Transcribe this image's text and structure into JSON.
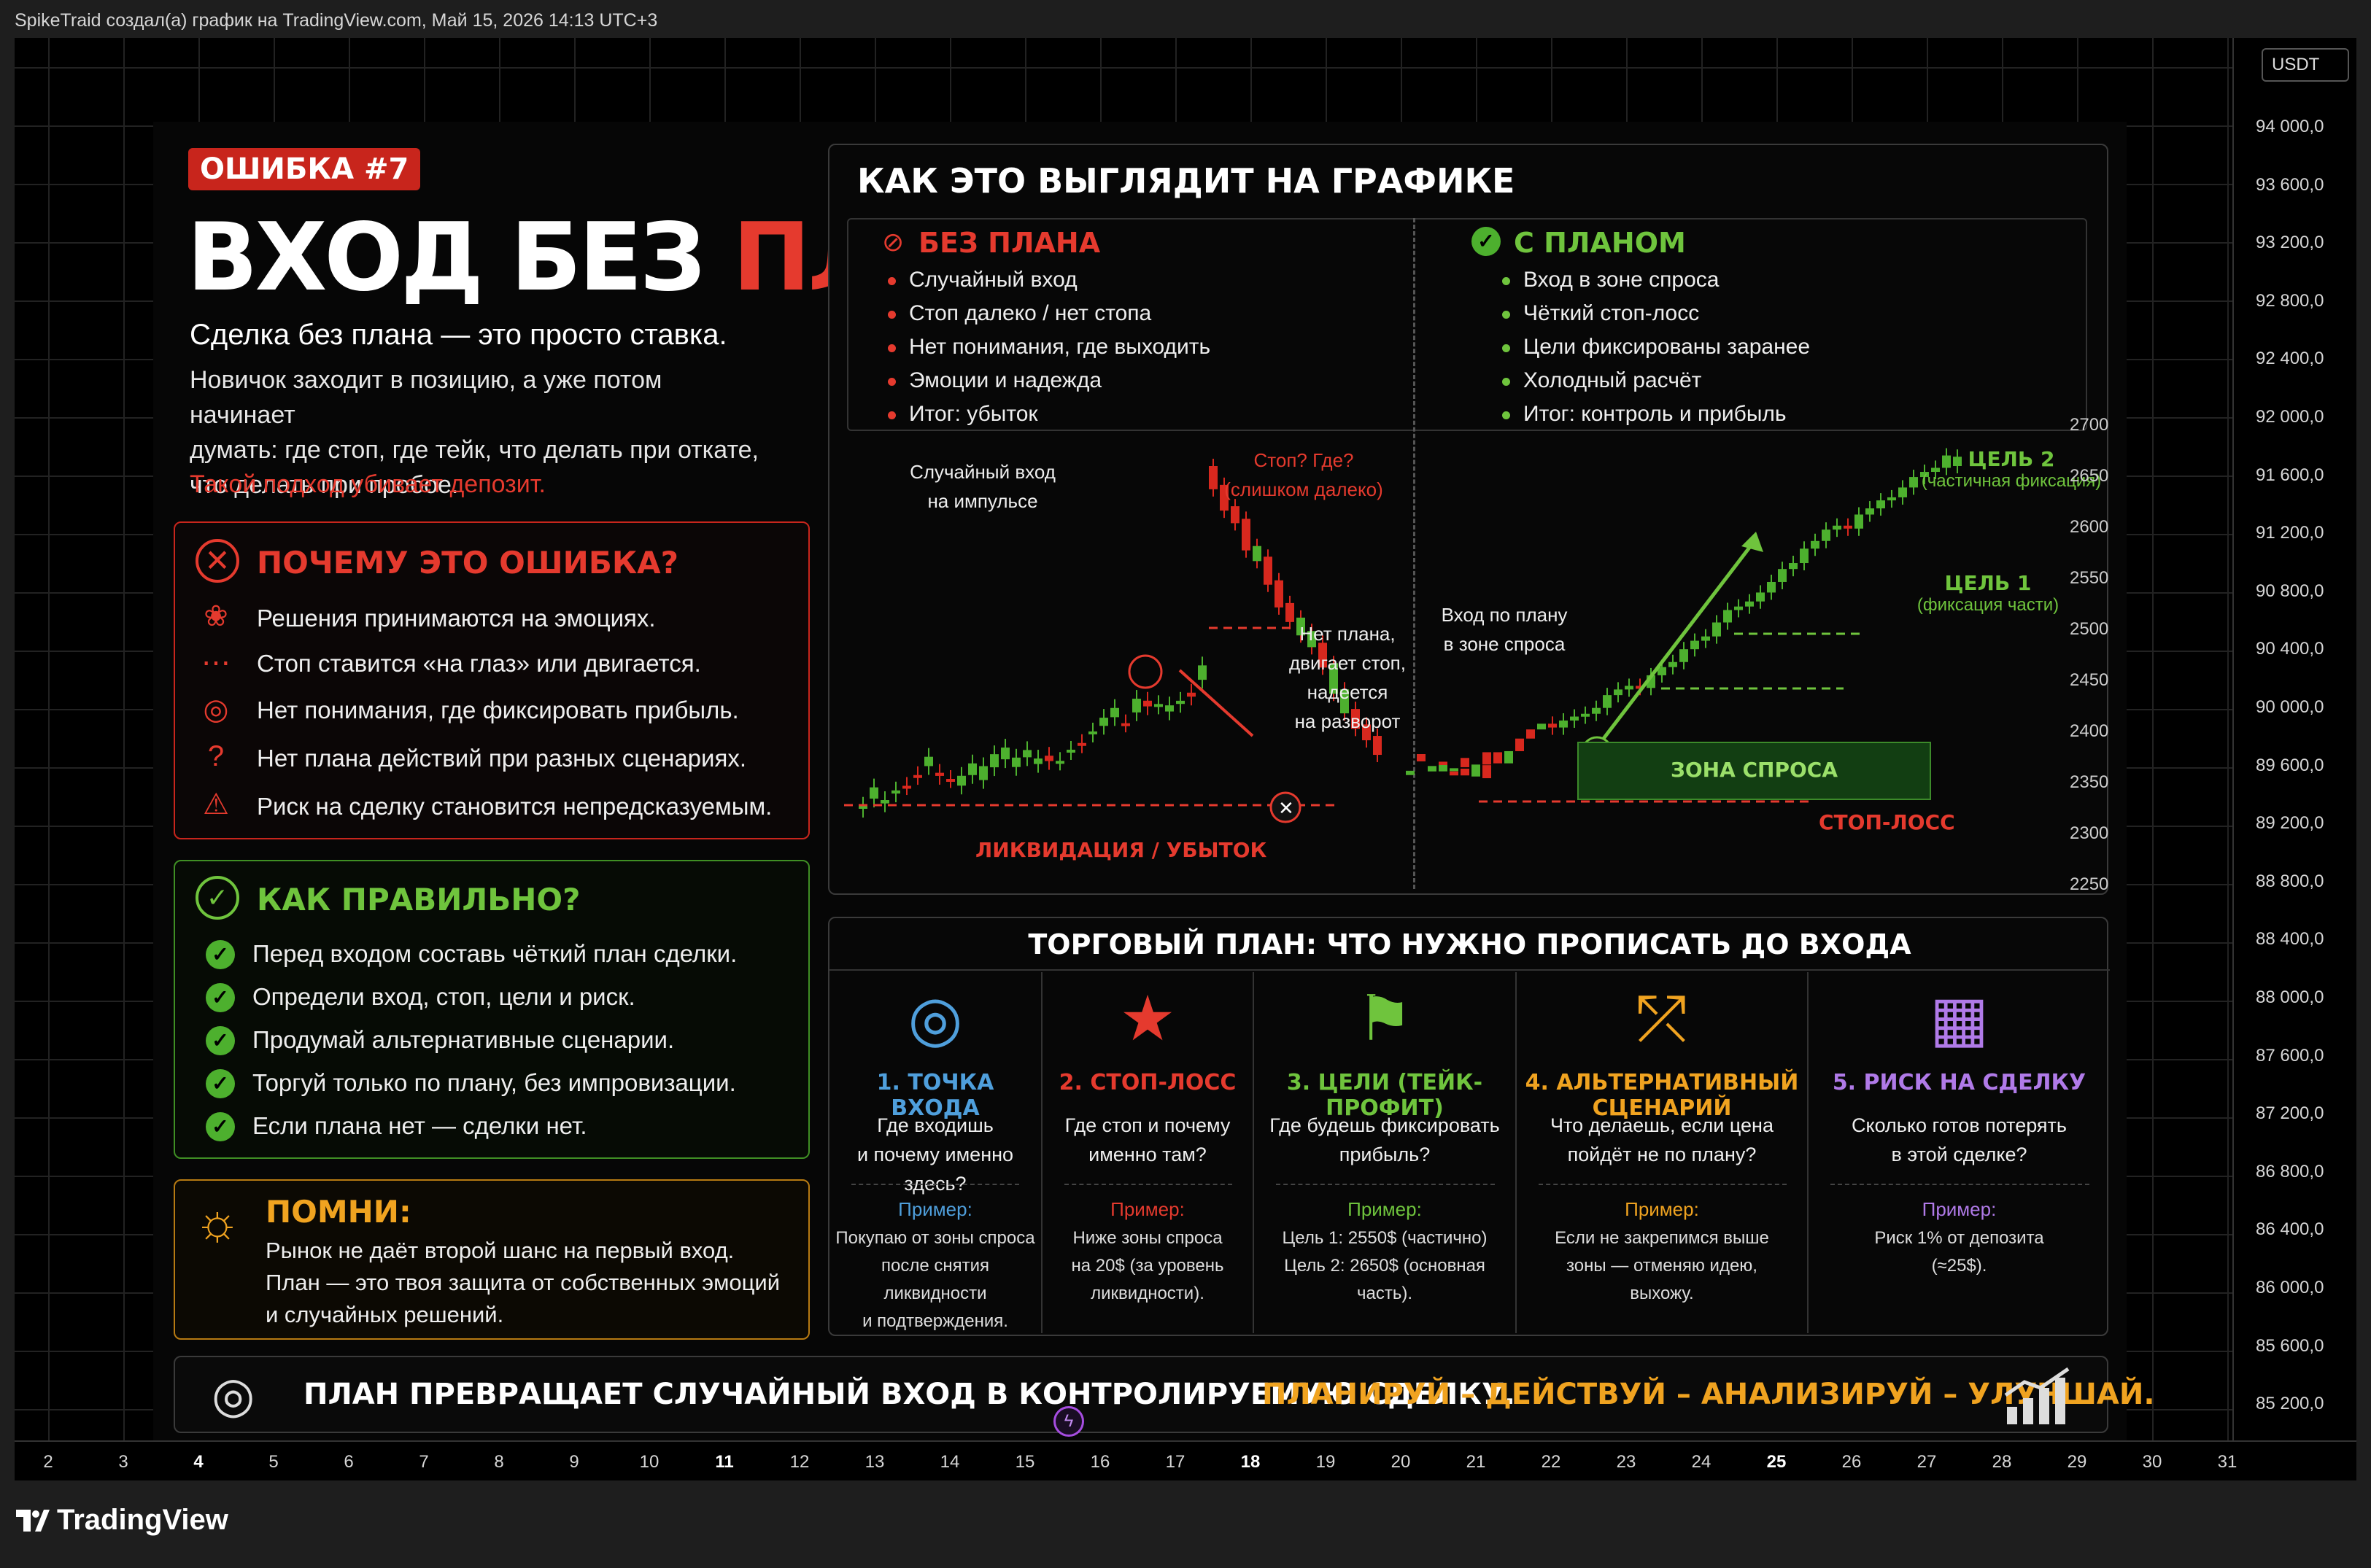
{
  "caption": "SpikeTraid создал(а) график на TradingView.com, Май 15, 2026 14:13 UTC+3",
  "currency": "USDT",
  "brand": "TradingView",
  "price_axis": [
    "94 000,0",
    "93 600,0",
    "93 200,0",
    "92 800,0",
    "92 400,0",
    "92 000,0",
    "91 600,0",
    "91 200,0",
    "90 800,0",
    "90 400,0",
    "90 000,0",
    "89 600,0",
    "89 200,0",
    "88 800,0",
    "88 400,0",
    "88 000,0",
    "87 600,0",
    "87 200,0",
    "86 800,0",
    "86 400,0",
    "86 000,0",
    "85 600,0",
    "85 200,0"
  ],
  "date_axis": [
    {
      "t": "2",
      "b": false
    },
    {
      "t": "3",
      "b": false
    },
    {
      "t": "4",
      "b": true
    },
    {
      "t": "5",
      "b": false
    },
    {
      "t": "6",
      "b": false
    },
    {
      "t": "7",
      "b": false
    },
    {
      "t": "8",
      "b": false
    },
    {
      "t": "9",
      "b": false
    },
    {
      "t": "10",
      "b": false
    },
    {
      "t": "11",
      "b": true
    },
    {
      "t": "12",
      "b": false
    },
    {
      "t": "13",
      "b": false
    },
    {
      "t": "14",
      "b": false
    },
    {
      "t": "15",
      "b": false
    },
    {
      "t": "16",
      "b": false
    },
    {
      "t": "17",
      "b": false
    },
    {
      "t": "18",
      "b": true
    },
    {
      "t": "19",
      "b": false
    },
    {
      "t": "20",
      "b": false
    },
    {
      "t": "21",
      "b": false
    },
    {
      "t": "22",
      "b": false
    },
    {
      "t": "23",
      "b": false
    },
    {
      "t": "24",
      "b": false
    },
    {
      "t": "25",
      "b": true
    },
    {
      "t": "26",
      "b": false
    },
    {
      "t": "27",
      "b": false
    },
    {
      "t": "28",
      "b": false
    },
    {
      "t": "29",
      "b": false
    },
    {
      "t": "30",
      "b": false
    },
    {
      "t": "31",
      "b": false
    }
  ],
  "info": {
    "badge": "ОШИБКА #7",
    "title_white": "ВХОД БЕЗ ",
    "title_red": "ПЛАНА",
    "subtitle": "Сделка без плана — это просто ставка.",
    "para1": "Новичок заходит в позицию, а уже потом начинает",
    "para2": "думать: где стоп, где тейк, что делать при откате,",
    "para3": "что делать при пробое.",
    "warning": "Такой подход убивает депозит.",
    "why": {
      "title": "ПОЧЕМУ ЭТО ОШИБКА?",
      "items": [
        "Решения принимаются на эмоциях.",
        "Стоп ставится «на глаз» или двигается.",
        "Нет понимания, где фиксировать прибыль.",
        "Нет плана действий при разных сценариях.",
        "Риск на сделку становится непредсказуемым."
      ]
    },
    "right": {
      "title": "КАК ПРАВИЛЬНО?",
      "items": [
        "Перед входом составь чёткий план сделки.",
        "Определи вход, стоп, цели и риск.",
        "Продумай альтернативные сценарии.",
        "Торгуй только по плану, без импровизации.",
        "Если плана нет — сделки нет."
      ]
    },
    "remember": {
      "title": "ПОМНИ:",
      "l1": "Рынок не даёт второй шанс на первый вход.",
      "l2": "План — это твоя защита от собственных эмоций",
      "l3": "и случайных решений."
    },
    "chart_box": {
      "title": "КАК ЭТО ВЫГЛЯДИТ НА ГРАФИКЕ",
      "no_plan_title": "БЕЗ ПЛАНА",
      "no_plan": [
        "Случайный вход",
        "Стоп далеко / нет стопа",
        "Нет понимания, где выходить",
        "Эмоции и надежда",
        "Итог: убыток"
      ],
      "plan_title": "С ПЛАНОМ",
      "plan": [
        "Вход в зоне спроса",
        "Чёткий стоп-лосс",
        "Цели фиксированы заранее",
        "Холодный расчёт",
        "Итог: контроль и прибыль"
      ],
      "ann_random1": "Случайный вход",
      "ann_random2": "на импульсе",
      "ann_stop1": "Стоп? Где?",
      "ann_stop2": "(слишком далеко)",
      "ann_noplan1": "Нет плана,",
      "ann_noplan2": "двигает стоп,",
      "ann_noplan3": "надеется",
      "ann_noplan4": "на разворот",
      "ann_liq": "ЛИКВИДАЦИЯ / УБЫТОК",
      "ann_entry1": "Вход по плану",
      "ann_entry2": "в зоне спроса",
      "zone": "ЗОНА СПРОСА",
      "stoploss": "СТОП-ЛОСС",
      "target2": "ЦЕЛЬ 2",
      "target2_sub": "(частичная фиксация)",
      "target1": "ЦЕЛЬ 1",
      "target1_sub": "(фиксация части)",
      "yaxis": [
        "2700",
        "2650",
        "2600",
        "2550",
        "2500",
        "2450",
        "2400",
        "2350",
        "2300",
        "2250"
      ]
    },
    "plan_table": {
      "title": "ТОРГОВЫЙ ПЛАН: ЧТО НУЖНО ПРОПИСАТЬ ДО ВХОДА",
      "example_label": "Пример:",
      "cols": [
        {
          "title": "1. ТОЧКА ВХОДА",
          "q1": "Где входишь",
          "q2": "и почему именно здесь?",
          "e1": "Покупаю от зоны спроса",
          "e2": "после снятия ликвидности",
          "e3": "и подтверждения.",
          "color": "#4f9fdc",
          "icon": "target-icon",
          "glyph": "◎"
        },
        {
          "title": "2. СТОП-ЛОСС",
          "q1": "Где стоп и почему",
          "q2": "именно там?",
          "e1": "Ниже зоны спроса",
          "e2": "на 20$ (за уровень",
          "e3": "ликвидности).",
          "color": "#e53a2e",
          "icon": "shield-icon",
          "glyph": "★"
        },
        {
          "title": "3. ЦЕЛИ (ТЕЙК-ПРОФИТ)",
          "q1": "Где будешь фиксировать",
          "q2": "прибыль?",
          "e1": "Цель 1: 2550$ (частично)",
          "e2": "Цель 2: 2650$ (основная",
          "e3": "часть).",
          "color": "#6fc43d",
          "icon": "flag-icon",
          "glyph": "⚑"
        },
        {
          "title": "4. АЛЬТЕРНАТИВНЫЙ СЦЕНАРИЙ",
          "q1": "Что делаешь, если цена",
          "q2": "пойдёт не по плану?",
          "e1": "Если не закрепимся выше",
          "e2": "зоны — отменяю идею,",
          "e3": "выхожу.",
          "color": "#f0a320",
          "icon": "split-arrows-icon",
          "glyph": "⤱"
        },
        {
          "title": "5. РИСК НА СДЕЛКУ",
          "q1": "Сколько готов потерять",
          "q2": "в этой сделке?",
          "e1": "Риск 1% от депозита",
          "e2": "(≈25$).",
          "e3": "",
          "color": "#b07ae8",
          "icon": "calculator-icon",
          "glyph": "▦"
        }
      ]
    },
    "footer": {
      "text": "ПЛАН ПРЕВРАЩАЕТ СЛУЧАЙНЫЙ ВХОД В КОНТРОЛИРУЕМУЮ СДЕЛКУ.",
      "slogan": "ПЛАНИРУЙ – ДЕЙСТВУЙ – АНАЛИЗИРУЙ – УЛУЧШАЙ."
    }
  },
  "colors": {
    "red": "#e53a2e",
    "green": "#6fc43d",
    "orange": "#f0a320",
    "blue": "#4f9fdc",
    "purple": "#b07ae8",
    "background": "#000000"
  }
}
